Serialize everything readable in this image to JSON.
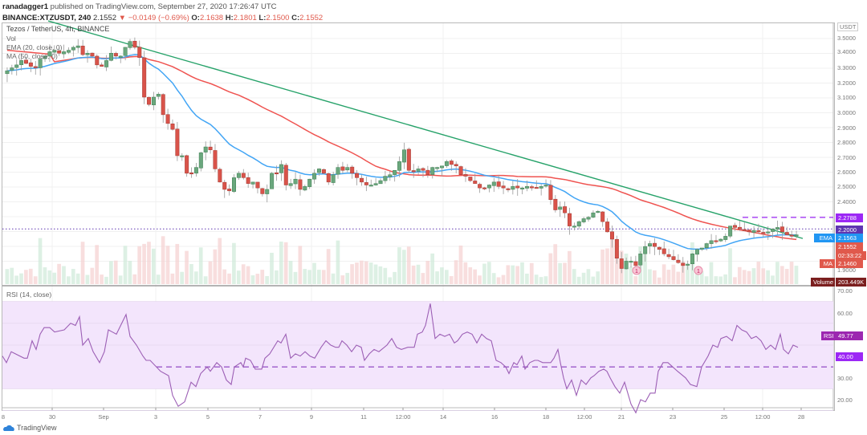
{
  "header": {
    "publisher_line": "ranadagger1 published on TradingView.com, September 27, 2020 17:26:47 UTC",
    "publisher": "ranadagger1",
    "published_text": "published on TradingView.com, September 27, 2020 17:26:47 UTC",
    "symbol": "BINANCE:XTZUSDT, 240",
    "last": "2.1552",
    "change": "▼ −0.0149 (−0.69%)",
    "o_label": "O:",
    "o": "2.1638",
    "h_label": "H:",
    "h": "2.1801",
    "l_label": "L:",
    "l": "2.1500",
    "c_label": "C:",
    "c": "2.1552"
  },
  "legend": {
    "title": "Tezos / TetherUS, 4h, BINANCE",
    "vol": "Vol",
    "ema": "EMA (20, close, 0)",
    "ma": "MA (50, close, 0)",
    "rsi": "RSI (14, close)"
  },
  "price_axis": {
    "currency": "USDT",
    "ticks": [
      "3.5000",
      "3.4000",
      "3.3000",
      "3.2000",
      "3.1000",
      "3.0000",
      "2.9000",
      "2.8000",
      "2.7000",
      "2.6000",
      "2.5000",
      "2.4000",
      "1.9000"
    ]
  },
  "price_tags": {
    "resistance": {
      "value": "2.2788",
      "color": "#9c27f5"
    },
    "hline": {
      "value": "2.2000",
      "color": "#5e35b1"
    },
    "ema": {
      "label": "EMA",
      "value": "2.1563",
      "color": "#2196f3"
    },
    "close": {
      "value": "2.1552",
      "color": "#e0594c"
    },
    "countdown": {
      "value": "02:33:22",
      "color": "#e0594c"
    },
    "ma": {
      "label": "MA",
      "value": "2.1460",
      "color": "#e0594c"
    },
    "volume": {
      "label": "Volume",
      "value": "203.449K",
      "color": "#7b1f1f"
    }
  },
  "rsi_axis": {
    "ticks": [
      "70.00",
      "60.00",
      "30.00",
      "20.00"
    ],
    "rsi_tag": {
      "label": "RSI",
      "value": "49.77",
      "color": "#9c27b0"
    },
    "level_tag": {
      "value": "40.00",
      "color": "#9c27f5"
    }
  },
  "time_axis": {
    "labels": [
      "8",
      "30",
      "Sep",
      "3",
      "5",
      "7",
      "9",
      "11",
      "12:00",
      "14",
      "16",
      "18",
      "12:00",
      "21",
      "23",
      "25",
      "12:00",
      "28"
    ]
  },
  "markers": [
    "1",
    "1"
  ],
  "footer": {
    "logo": "TradingView"
  },
  "chart_data": {
    "type": "candlestick",
    "title": "Tezos / TetherUS, 4h, BINANCE",
    "symbol": "BINANCE:XTZUSDT",
    "interval": "4h",
    "x_range": [
      "Aug 28 2020",
      "Sep 27 2020"
    ],
    "y_range": [
      1.85,
      3.55
    ],
    "indicators": [
      "Volume",
      "EMA(20)",
      "MA(50)",
      "RSI(14)"
    ],
    "closes_approx": [
      3.28,
      3.3,
      3.32,
      3.35,
      3.33,
      3.31,
      3.3,
      3.36,
      3.38,
      3.41,
      3.42,
      3.4,
      3.41,
      3.42,
      3.44,
      3.45,
      3.39,
      3.4,
      3.38,
      3.32,
      3.31,
      3.35,
      3.4,
      3.38,
      3.38,
      3.44,
      3.48,
      3.44,
      3.37,
      3.1,
      3.05,
      3.1,
      3.12,
      2.98,
      2.92,
      2.88,
      2.7,
      2.7,
      2.58,
      2.58,
      2.62,
      2.72,
      2.76,
      2.74,
      2.61,
      2.52,
      2.47,
      2.46,
      2.55,
      2.58,
      2.55,
      2.51,
      2.52,
      2.48,
      2.44,
      2.47,
      2.58,
      2.58,
      2.64,
      2.5,
      2.51,
      2.54,
      2.47,
      2.49,
      2.54,
      2.58,
      2.61,
      2.58,
      2.52,
      2.57,
      2.62,
      2.6,
      2.62,
      2.58,
      2.55,
      2.52,
      2.5,
      2.5,
      2.51,
      2.53,
      2.56,
      2.57,
      2.6,
      2.66,
      2.74,
      2.6,
      2.59,
      2.61,
      2.6,
      2.57,
      2.62,
      2.62,
      2.63,
      2.66,
      2.64,
      2.63,
      2.57,
      2.56,
      2.53,
      2.51,
      2.48,
      2.48,
      2.5,
      2.52,
      2.49,
      2.48,
      2.47,
      2.49,
      2.48,
      2.48,
      2.49,
      2.48,
      2.48,
      2.49,
      2.5,
      2.4,
      2.33,
      2.35,
      2.31,
      2.22,
      2.22,
      2.25,
      2.27,
      2.28,
      2.31,
      2.32,
      2.25,
      2.18,
      2.13,
      2.0,
      1.93,
      1.98,
      1.98,
      1.95,
      2.03,
      2.08,
      2.1,
      2.08,
      2.06,
      2.03,
      2.01,
      1.99,
      1.97,
      1.95,
      1.96,
      2.03,
      2.06,
      2.07,
      2.1,
      2.12,
      2.12,
      2.13,
      2.15,
      2.22,
      2.21,
      2.2,
      2.19,
      2.18,
      2.19,
      2.18,
      2.17,
      2.18,
      2.2,
      2.21,
      2.18,
      2.16,
      2.15,
      2.16
    ],
    "ema20_last": 2.1563,
    "ma50_last": 2.146,
    "last_close": 2.1552,
    "last_volume": "203.449K",
    "hlines": [
      {
        "value": 2.2788,
        "style": "dashed",
        "color": "#9c27f5"
      },
      {
        "value": 2.2,
        "style": "dotted",
        "color": "#5e35b1"
      }
    ],
    "trendline": {
      "from": {
        "date": "Aug 29",
        "price": 3.62
      },
      "to": {
        "date": "Sep 27",
        "price": 2.15
      },
      "color": "#26a269"
    },
    "rsi": {
      "last": 49.77,
      "range": [
        15,
        75
      ],
      "band": [
        30,
        70
      ],
      "dashed_level": 40,
      "min_approx": 21,
      "max_approx": 65
    }
  }
}
